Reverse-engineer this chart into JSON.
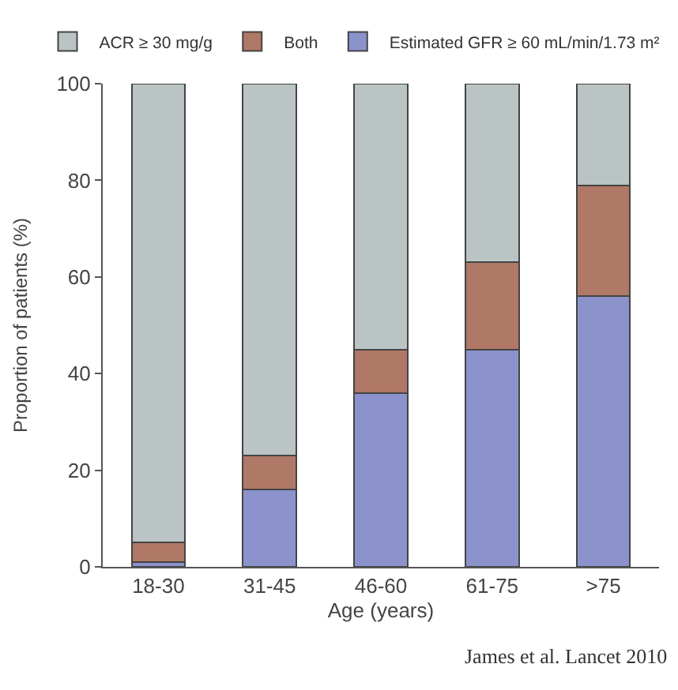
{
  "chart_data": {
    "type": "bar",
    "stacked": true,
    "categories": [
      "18-30",
      "31-45",
      "46-60",
      "61-75",
      ">75"
    ],
    "series": [
      {
        "name": "Estimated GFR ≥ 60 mL/min/1.73 m²",
        "color": "#8c93cc",
        "values": [
          1,
          16,
          36,
          45,
          56
        ]
      },
      {
        "name": "Both",
        "color": "#b07866",
        "values": [
          4,
          7,
          9,
          18,
          23
        ]
      },
      {
        "name": "ACR ≥ 30 mg/g",
        "color": "#bac4c4",
        "values": [
          95,
          77,
          55,
          37,
          21
        ]
      }
    ],
    "xlabel": "Age (years)",
    "ylabel": "Proportion of patients (%)",
    "ylim": [
      0,
      100
    ],
    "yticks": [
      0,
      20,
      40,
      60,
      80,
      100
    ],
    "legend": "top",
    "annotations": [
      "James et al. Lancet 2010"
    ]
  }
}
